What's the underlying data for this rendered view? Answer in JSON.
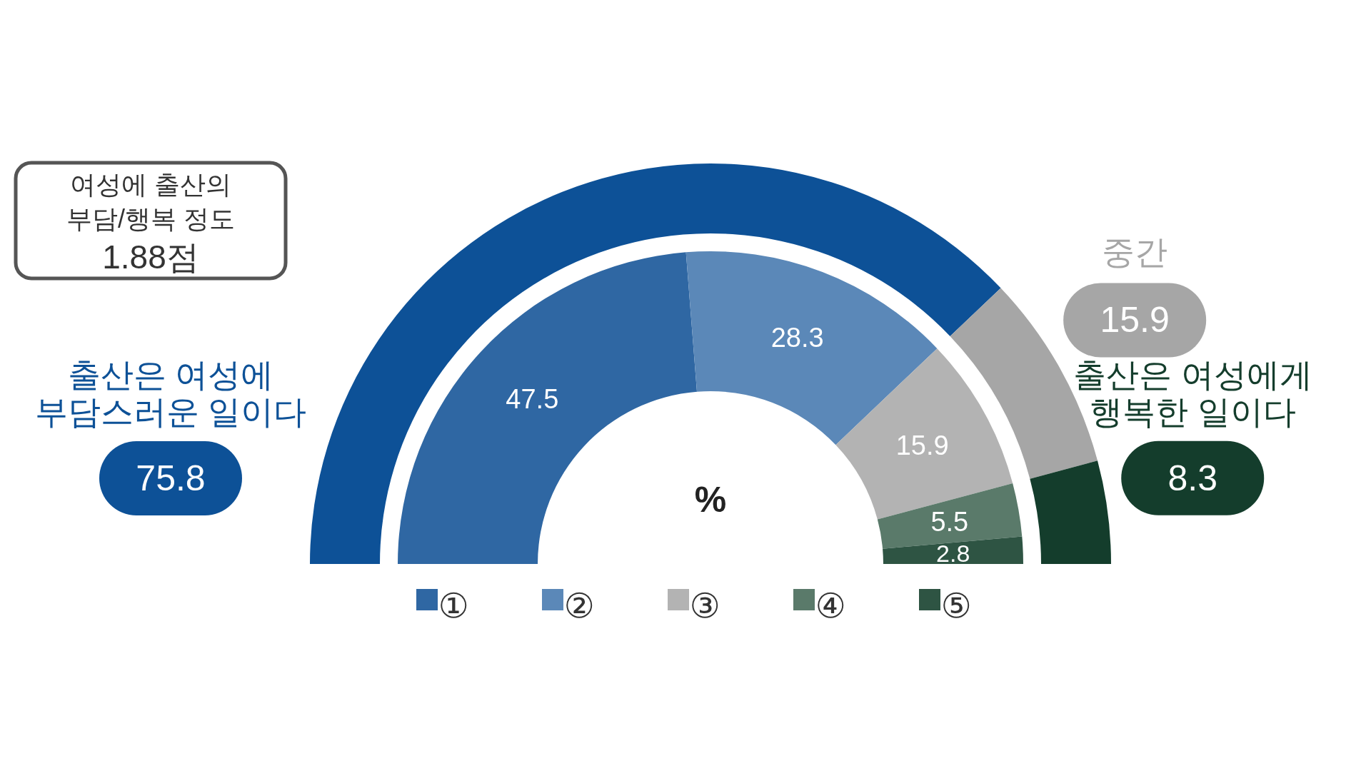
{
  "chart_data": [
    {
      "type": "donut",
      "categories": [
        "출산은 여성에\n부담스러운 일이다",
        "중간",
        "출산은 여성에게\n행복한 일이다"
      ],
      "values": [
        75.8,
        15.9,
        8.3
      ],
      "colors": [
        "#0d5197",
        "#a6a6a6",
        "#143d2c"
      ],
      "data_labels": true,
      "annotations": [
        "여성에 출산의\n부담/행복 정도\n1.88점"
      ]
    },
    {
      "type": "donut",
      "categories": [
        "①",
        "②",
        "③",
        "④",
        "⑤"
      ],
      "values": [
        47.5,
        28.3,
        15.9,
        5.5,
        2.8
      ],
      "colors": [
        "#2f67a3",
        "#5b88b8",
        "#b3b3b3",
        "#5a7a6a",
        "#2e5443"
      ],
      "data_labels": true,
      "legend": "bottom",
      "annotations": [
        "%"
      ]
    }
  ]
}
